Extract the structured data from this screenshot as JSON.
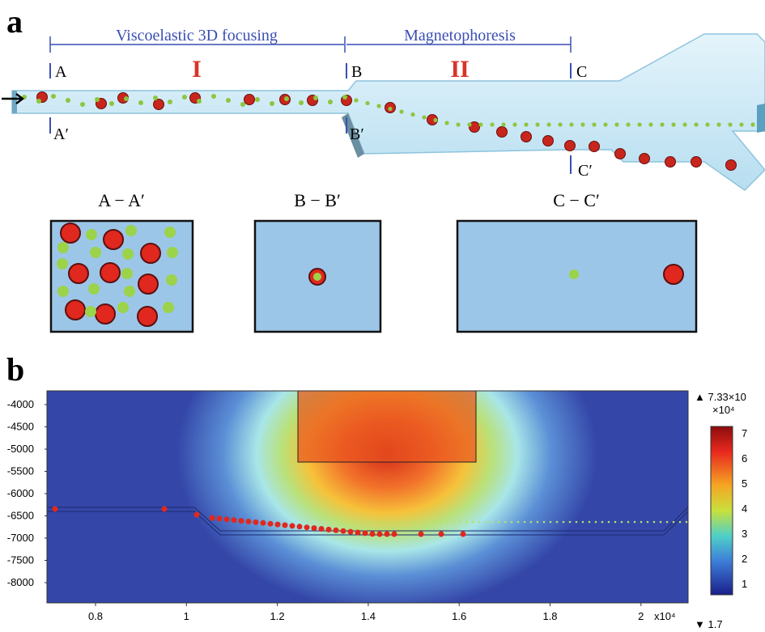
{
  "panel_a": {
    "label": "a",
    "regions": [
      {
        "title": "Viscoelastic 3D focusing",
        "numeral": "I"
      },
      {
        "title": "Magnetophoresis",
        "numeral": "II"
      }
    ],
    "markers": [
      "A",
      "B",
      "C"
    ],
    "markers_prime": [
      "A′",
      "B′",
      "C′"
    ],
    "sections": [
      "A − A′",
      "B − B′",
      "C − C′"
    ]
  },
  "panel_b": {
    "label": "b",
    "yticks": [
      "-4000",
      "-4500",
      "-5000",
      "-5500",
      "-6000",
      "-6500",
      "-7000",
      "-7500",
      "-8000"
    ],
    "xticks": [
      "0.8",
      "1",
      "1.2",
      "1.4",
      "1.6",
      "1.8",
      "2"
    ],
    "x_multiplier": "x10⁴",
    "colorbar": {
      "max": "▲ 7.33×10",
      "max_exp": "×10⁴",
      "ticks": [
        "7",
        "6",
        "5",
        "4",
        "3",
        "2",
        "1"
      ],
      "min": "▼ 1.7"
    }
  }
}
